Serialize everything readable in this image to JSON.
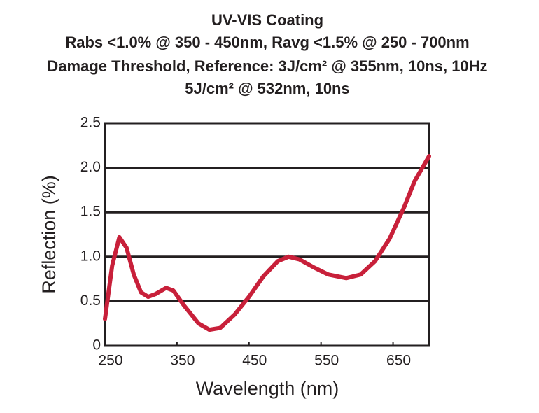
{
  "chart_data": {
    "type": "line",
    "title": [
      "UV-VIS Coating",
      "Rabs <1.0% @ 350 - 450nm, Ravg <1.5% @ 250 - 700nm",
      "Damage Threshold, Reference: 3J/cm² @ 355nm, 10ns, 10Hz",
      "5J/cm² @ 532nm, 10ns"
    ],
    "x_label": "Wavelength (nm)",
    "y_label": "Reflection (%)",
    "x": [
      250,
      260,
      270,
      280,
      290,
      300,
      310,
      320,
      335,
      345,
      360,
      380,
      395,
      410,
      430,
      450,
      470,
      490,
      505,
      520,
      540,
      560,
      585,
      605,
      625,
      645,
      665,
      680,
      700
    ],
    "series": [
      {
        "name": "Reflection",
        "color": "#c8203a",
        "values": [
          0.3,
          0.9,
          1.22,
          1.1,
          0.8,
          0.6,
          0.55,
          0.58,
          0.65,
          0.62,
          0.45,
          0.25,
          0.18,
          0.2,
          0.35,
          0.55,
          0.78,
          0.95,
          1.0,
          0.97,
          0.88,
          0.8,
          0.76,
          0.8,
          0.95,
          1.2,
          1.55,
          1.85,
          2.13
        ]
      }
    ],
    "xlim": [
      250,
      700
    ],
    "xticks": [
      250,
      350,
      450,
      550,
      650
    ],
    "ylim": [
      0,
      2.5
    ],
    "yticks": [
      0,
      0.5,
      {
        "value": 1,
        "label": "1.0"
      },
      1.5,
      {
        "value": 2,
        "label": "2.0"
      },
      2.5
    ],
    "grid": true
  }
}
